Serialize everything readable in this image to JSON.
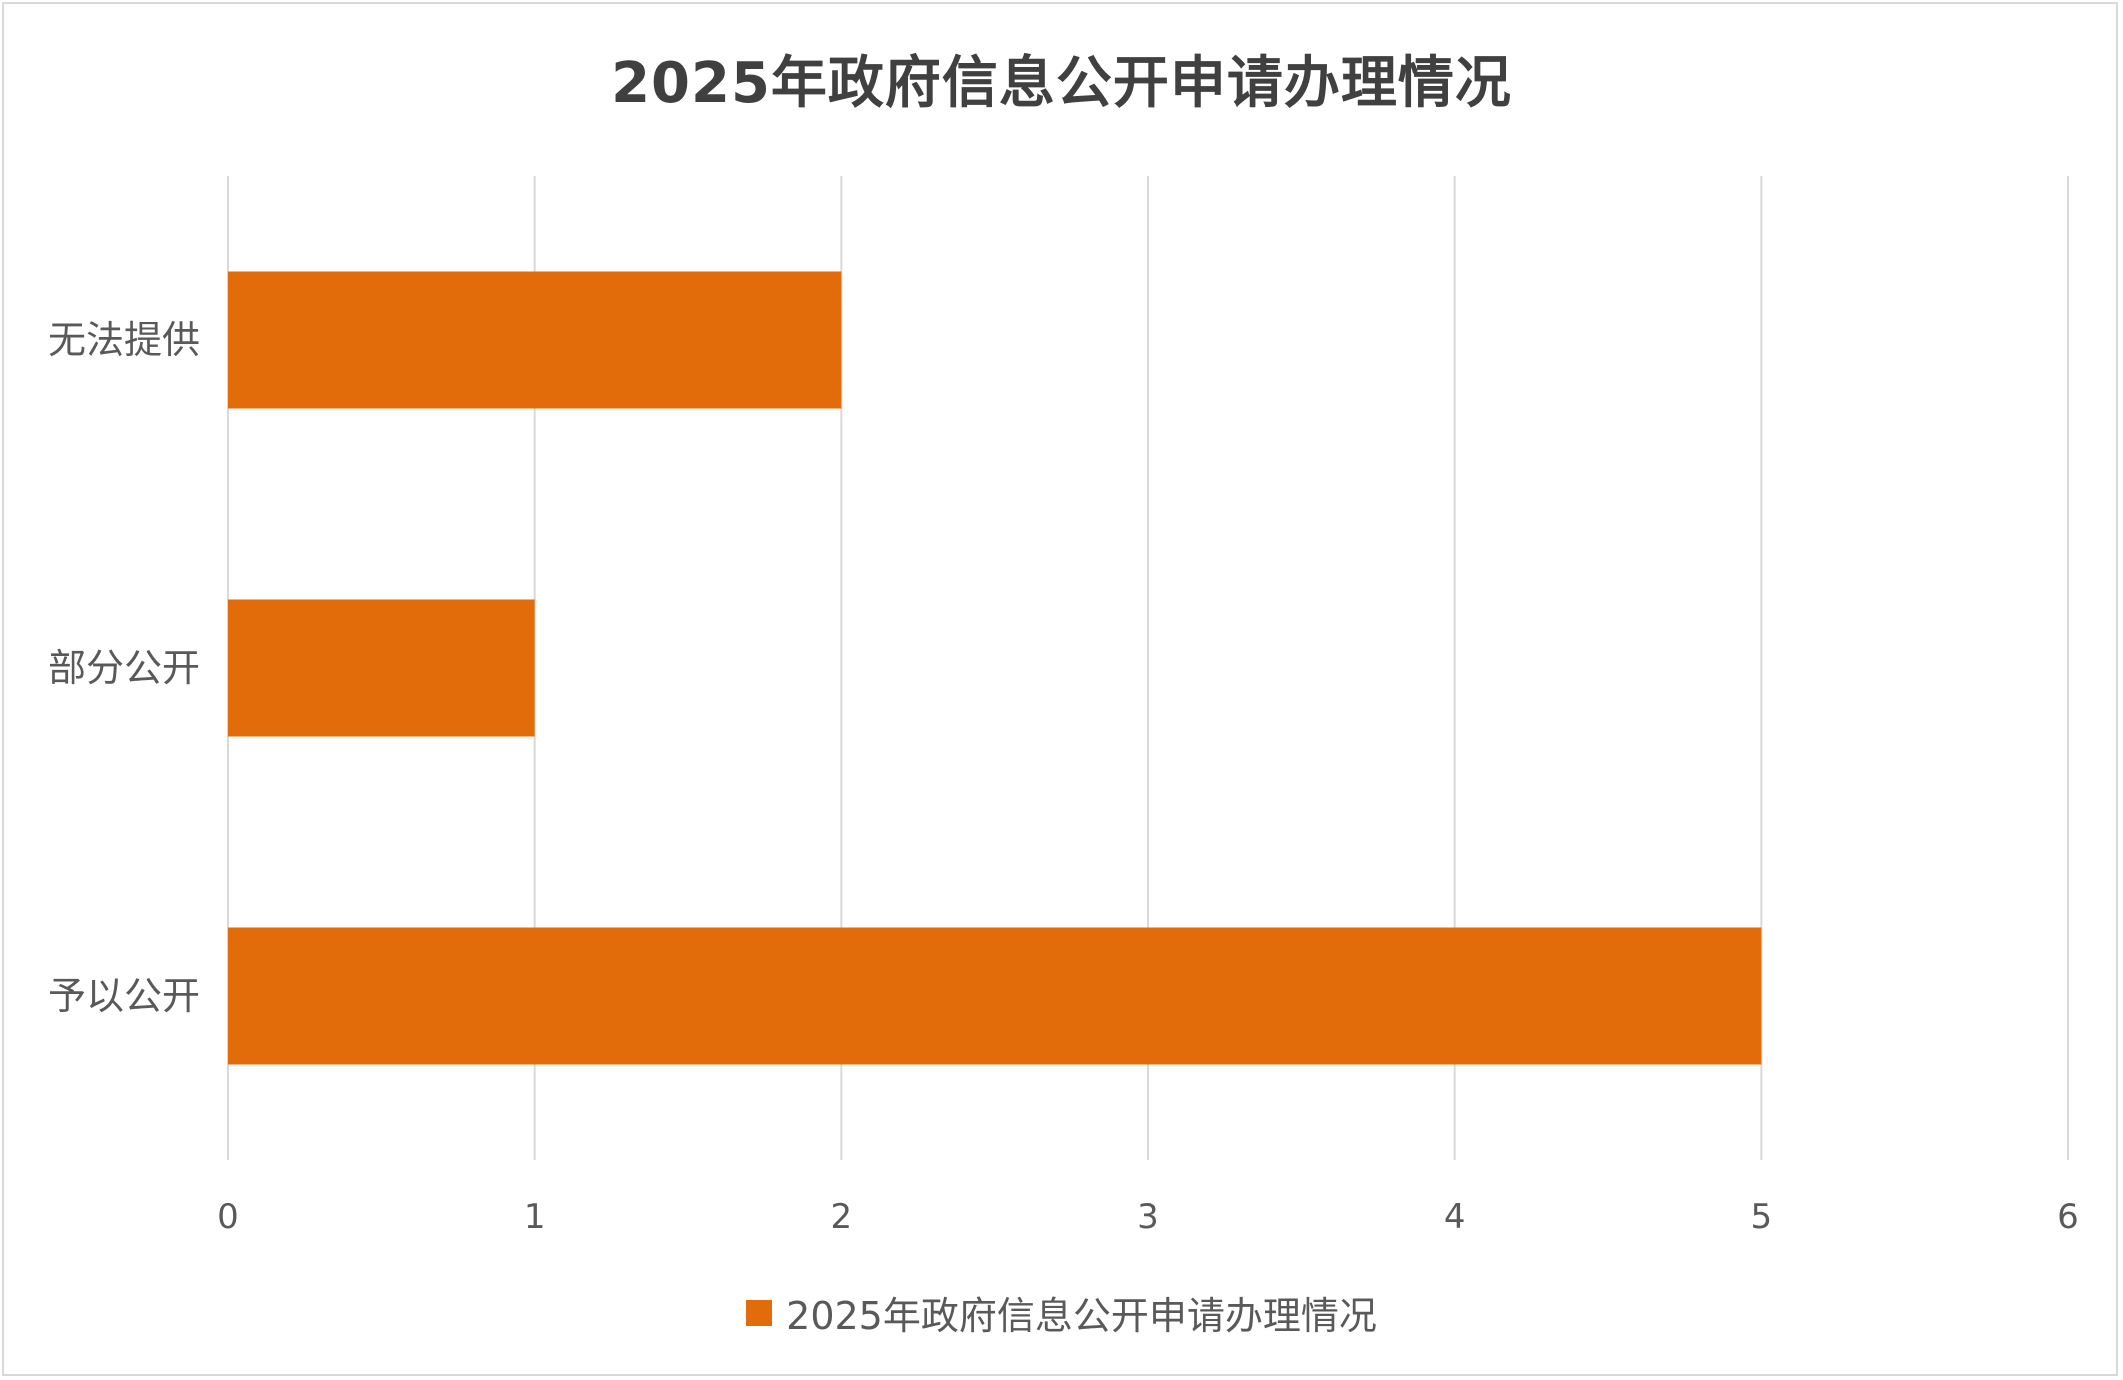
{
  "chart_data": {
    "type": "bar",
    "orientation": "horizontal",
    "title": "2025年政府信息公开申请办理情况",
    "categories": [
      "予以公开",
      "部分公开",
      "无法提供"
    ],
    "series": [
      {
        "name": "2025年政府信息公开申请办理情况",
        "values": [
          5,
          1,
          2
        ],
        "color": "#E36C0A"
      }
    ],
    "xlim": [
      0,
      6
    ],
    "x_ticks": [
      "0",
      "1",
      "2",
      "3",
      "4",
      "5",
      "6"
    ],
    "grid": "vertical",
    "legend_position": "bottom"
  }
}
